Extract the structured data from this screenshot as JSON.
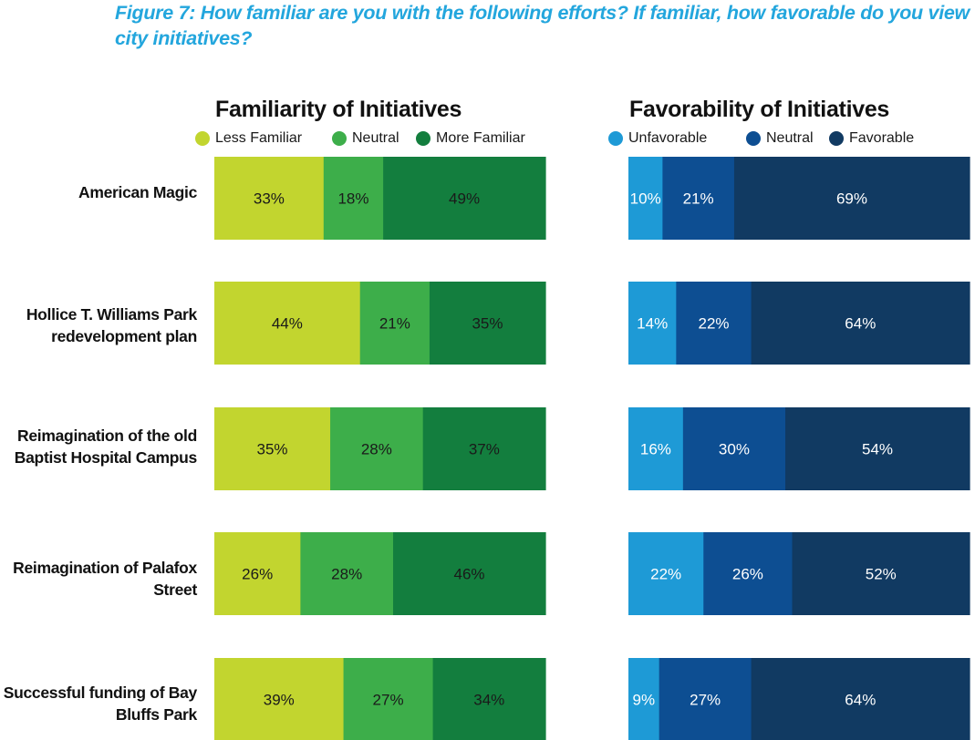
{
  "figure_title": "Figure 7: How familiar are you with the following efforts? If familiar, how favorable do you view city initiatives?",
  "chart_data": [
    {
      "type": "bar",
      "orientation": "horizontal",
      "stacked": true,
      "title": "Familiarity of Initiatives",
      "legend": [
        {
          "name": "Less Familiar",
          "color": "#c2d52f"
        },
        {
          "name": "Neutral",
          "color": "#3dae4a"
        },
        {
          "name": "More Familiar",
          "color": "#137e3e"
        }
      ],
      "label_color": "#1a1a1a",
      "categories": [
        [
          "American Magic"
        ],
        [
          "Hollice T. Williams Park",
          "redevelopment plan"
        ],
        [
          "Reimagination of the old",
          "Baptist Hospital Campus"
        ],
        [
          "Reimagination of Palafox",
          "Street"
        ],
        [
          "Successful funding of Bay",
          "Bluffs Park"
        ]
      ],
      "series": [
        {
          "name": "Less Familiar",
          "values": [
            33,
            44,
            35,
            26,
            39
          ]
        },
        {
          "name": "Neutral",
          "values": [
            18,
            21,
            28,
            28,
            27
          ]
        },
        {
          "name": "More Familiar",
          "values": [
            49,
            35,
            37,
            46,
            34
          ]
        }
      ],
      "xlim": [
        0,
        100
      ]
    },
    {
      "type": "bar",
      "orientation": "horizontal",
      "stacked": true,
      "title": "Favorability of Initiatives",
      "legend": [
        {
          "name": "Unfavorable",
          "color": "#1e9ad6"
        },
        {
          "name": "Neutral",
          "color": "#0d4e92"
        },
        {
          "name": "Favorable",
          "color": "#113a62"
        }
      ],
      "label_color": "#ffffff",
      "series": [
        {
          "name": "Unfavorable",
          "values": [
            10,
            14,
            16,
            22,
            9
          ]
        },
        {
          "name": "Neutral",
          "values": [
            21,
            22,
            30,
            26,
            27
          ]
        },
        {
          "name": "Favorable",
          "values": [
            69,
            64,
            54,
            52,
            64
          ]
        }
      ],
      "xlim": [
        0,
        100
      ]
    }
  ]
}
